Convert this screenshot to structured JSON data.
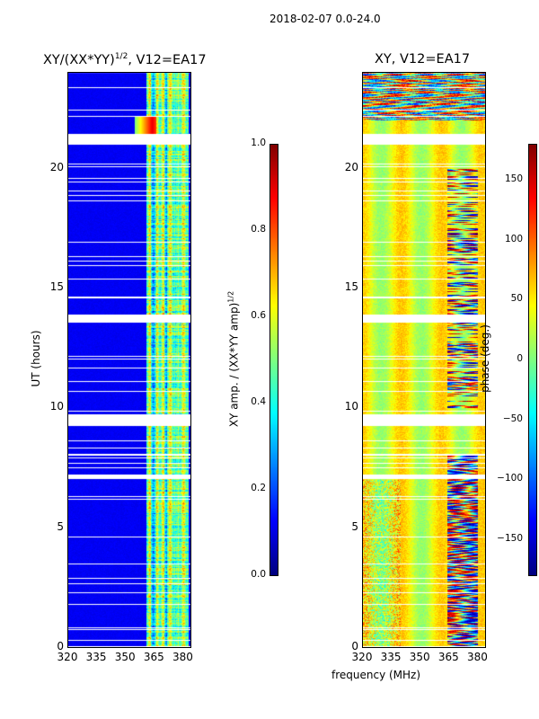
{
  "chart_data": [
    {
      "type": "heatmap",
      "title": "XY/(XX*YY)",
      "title_sup": "1/2",
      "title_suffix": ", V12=EA17",
      "xlabel": "",
      "ylabel": "UT (hours)",
      "xlim": [
        320,
        384
      ],
      "ylim": [
        0,
        24
      ],
      "xticks": [
        320,
        335,
        350,
        365,
        380
      ],
      "yticks": [
        0,
        5,
        10,
        15,
        20
      ],
      "colorbar": {
        "label": "XY amp. / (XX*YY amp)",
        "label_sup": "1/2",
        "range": [
          0,
          1
        ],
        "ticks": [
          "0.0",
          "0.2",
          "0.4",
          "0.6",
          "0.8",
          "1.0"
        ],
        "colormap": "jet"
      },
      "flagged_hours": [
        [
          21.0,
          21.4
        ],
        [
          13.6,
          13.85
        ],
        [
          9.3,
          9.7
        ],
        [
          7.05,
          7.2
        ]
      ],
      "description_values": {
        "background_level": 0.1,
        "band_365_382_level": 0.5
      }
    },
    {
      "type": "heatmap",
      "title": "XY, V12=EA17",
      "xlabel": "frequency (MHz)",
      "ylabel": "",
      "xlim": [
        320,
        384
      ],
      "ylim": [
        0,
        24
      ],
      "xticks": [
        320,
        335,
        350,
        365,
        380
      ],
      "yticks": [
        0,
        5,
        10,
        15,
        20
      ],
      "colorbar": {
        "label": "phase (deg.)",
        "range": [
          -180,
          180
        ],
        "ticks": [
          "−150",
          "−100",
          "−50",
          "0",
          "50",
          "100",
          "150"
        ],
        "tick_values": [
          -150,
          -100,
          -50,
          0,
          50,
          100,
          150
        ],
        "colormap": "jet"
      },
      "flagged_hours": [
        [
          21.0,
          21.4
        ],
        [
          13.6,
          13.85
        ],
        [
          9.3,
          9.7
        ],
        [
          7.05,
          7.2
        ]
      ]
    }
  ],
  "suptitle": "2018-02-07 0.0-24.0",
  "tick_labels": {
    "x": [
      "320",
      "335",
      "350",
      "365",
      "380"
    ],
    "y": [
      "0",
      "5",
      "10",
      "15",
      "20"
    ]
  }
}
